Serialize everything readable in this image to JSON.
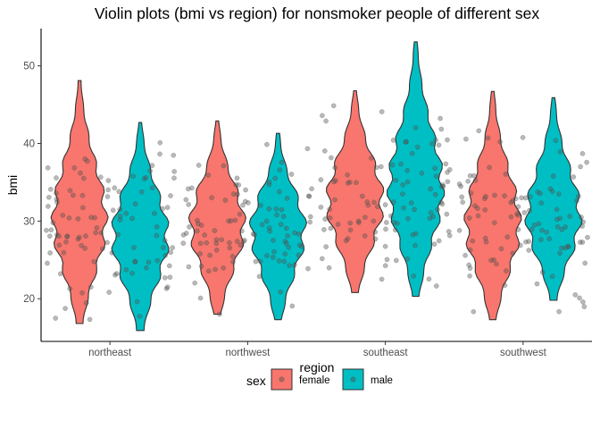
{
  "chart_data": {
    "type": "violin",
    "title": "Violin plots (bmi vs region) for nonsmoker people of different sex",
    "xlabel": "region",
    "ylabel": "bmi",
    "categories": [
      "northeast",
      "northwest",
      "southeast",
      "southwest"
    ],
    "y_ticks": [
      20,
      30,
      40,
      50
    ],
    "ylim": [
      14.5,
      54.8
    ],
    "grid": false,
    "legend": {
      "title": "sex",
      "position": "bottom",
      "entries": [
        "female",
        "male"
      ]
    },
    "colors": {
      "female": "#F8766D",
      "male": "#00BFC4",
      "outline": "#333333",
      "points": "#555555"
    },
    "series": [
      {
        "name": "female",
        "violins": [
          {
            "category": "northeast",
            "min": 16.8,
            "max": 48.1,
            "median": 30.0
          },
          {
            "category": "northwest",
            "min": 18.0,
            "max": 42.9,
            "median": 29.5
          },
          {
            "category": "southeast",
            "min": 20.8,
            "max": 46.8,
            "median": 32.5
          },
          {
            "category": "southwest",
            "min": 17.3,
            "max": 46.7,
            "median": 29.5
          }
        ]
      },
      {
        "name": "male",
        "violins": [
          {
            "category": "northeast",
            "min": 15.9,
            "max": 42.7,
            "median": 28.0
          },
          {
            "category": "northwest",
            "min": 17.3,
            "max": 41.3,
            "median": 29.0
          },
          {
            "category": "southeast",
            "min": 20.3,
            "max": 53.1,
            "median": 34.0
          },
          {
            "category": "southwest",
            "min": 19.8,
            "max": 45.9,
            "median": 30.5
          }
        ]
      }
    ]
  }
}
